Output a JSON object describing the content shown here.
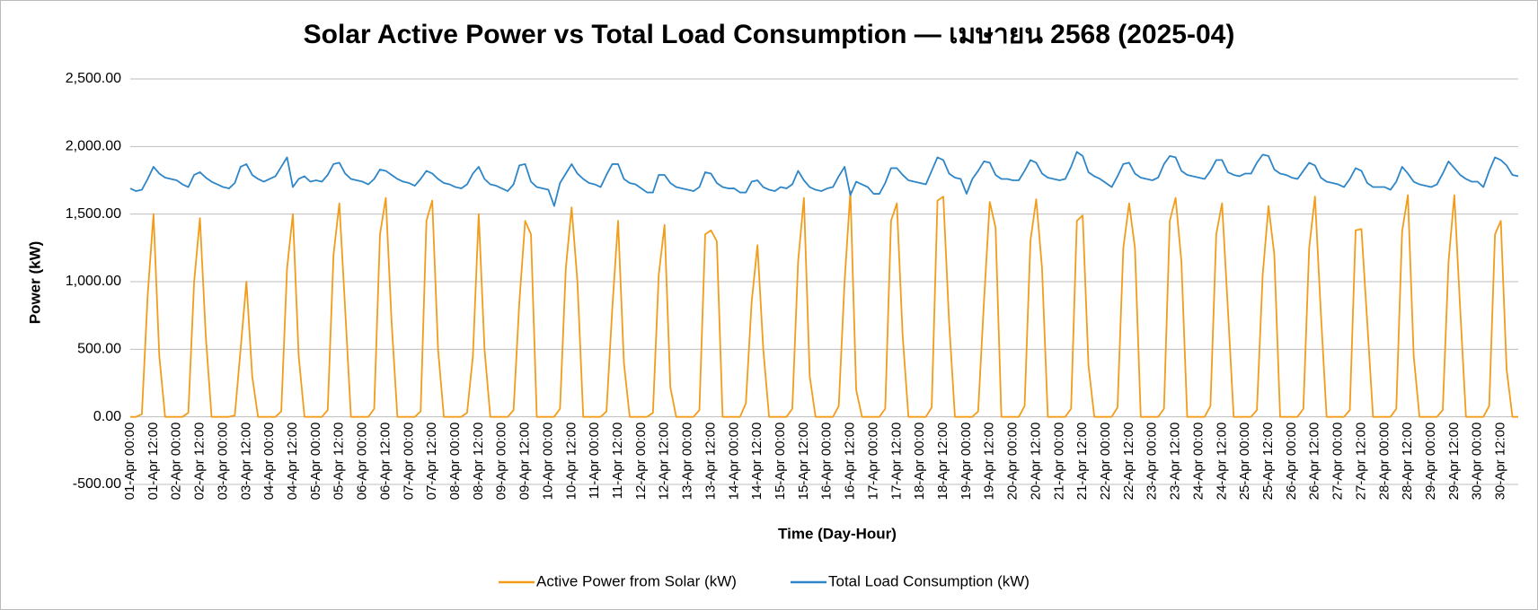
{
  "chart_data": {
    "type": "line",
    "title": "Solar Active Power vs Total Load Consumption — เมษายน 2568  (2025-04)",
    "y_label": "Power (kW)",
    "x_label": "Time (Day-Hour)",
    "categories": [
      "01-Apr 00:00",
      null,
      null,
      null,
      "01-Apr 12:00",
      null,
      null,
      null,
      "02-Apr 00:00",
      null,
      null,
      null,
      "02-Apr 12:00",
      null,
      null,
      null,
      "03-Apr 00:00",
      null,
      null,
      null,
      "03-Apr 12:00",
      null,
      null,
      null,
      "04-Apr 00:00",
      null,
      null,
      null,
      "04-Apr 12:00",
      null,
      null,
      null,
      "05-Apr 00:00",
      null,
      null,
      null,
      "05-Apr 12:00",
      null,
      null,
      null,
      "06-Apr 00:00",
      null,
      null,
      null,
      "06-Apr 12:00",
      null,
      null,
      null,
      "07-Apr 00:00",
      null,
      null,
      null,
      "07-Apr 12:00",
      null,
      null,
      null,
      "08-Apr 00:00",
      null,
      null,
      null,
      "08-Apr 12:00",
      null,
      null,
      null,
      "09-Apr 00:00",
      null,
      null,
      null,
      "09-Apr 12:00",
      null,
      null,
      null,
      "10-Apr 00:00",
      null,
      null,
      null,
      "10-Apr 12:00",
      null,
      null,
      null,
      "11-Apr 00:00",
      null,
      null,
      null,
      "11-Apr 12:00",
      null,
      null,
      null,
      "12-Apr 00:00",
      null,
      null,
      null,
      "12-Apr 12:00",
      null,
      null,
      null,
      "13-Apr 00:00",
      null,
      null,
      null,
      "13-Apr 12:00",
      null,
      null,
      null,
      "14-Apr 00:00",
      null,
      null,
      null,
      "14-Apr 12:00",
      null,
      null,
      null,
      "15-Apr 00:00",
      null,
      null,
      null,
      "15-Apr 12:00",
      null,
      null,
      null,
      "16-Apr 00:00",
      null,
      null,
      null,
      "16-Apr 12:00",
      null,
      null,
      null,
      "17-Apr 00:00",
      null,
      null,
      null,
      "17-Apr 12:00",
      null,
      null,
      null,
      "18-Apr 00:00",
      null,
      null,
      null,
      "18-Apr 12:00",
      null,
      null,
      null,
      "19-Apr 00:00",
      null,
      null,
      null,
      "19-Apr 12:00",
      null,
      null,
      null,
      "20-Apr 00:00",
      null,
      null,
      null,
      "20-Apr 12:00",
      null,
      null,
      null,
      "21-Apr 00:00",
      null,
      null,
      null,
      "21-Apr 12:00",
      null,
      null,
      null,
      "22-Apr 00:00",
      null,
      null,
      null,
      "22-Apr 12:00",
      null,
      null,
      null,
      "23-Apr 00:00",
      null,
      null,
      null,
      "23-Apr 12:00",
      null,
      null,
      null,
      "24-Apr 00:00",
      null,
      null,
      null,
      "24-Apr 12:00",
      null,
      null,
      null,
      "25-Apr 00:00",
      null,
      null,
      null,
      "25-Apr 12:00",
      null,
      null,
      null,
      "26-Apr 00:00",
      null,
      null,
      null,
      "26-Apr 12:00",
      null,
      null,
      null,
      "27-Apr 00:00",
      null,
      null,
      null,
      "27-Apr 12:00",
      null,
      null,
      null,
      "28-Apr 00:00",
      null,
      null,
      null,
      "28-Apr 12:00",
      null,
      null,
      null,
      "29-Apr 00:00",
      null,
      null,
      null,
      "29-Apr 12:00",
      null,
      null,
      null,
      "30-Apr 00:00",
      null,
      null,
      null,
      "30-Apr 12:00",
      null,
      null,
      null
    ],
    "series": [
      {
        "name": "Active Power from Solar (kW)",
        "color": "#f39c1a",
        "values": [
          0,
          0,
          20,
          900,
          1500,
          450,
          0,
          0,
          0,
          0,
          30,
          1000,
          1470,
          600,
          0,
          0,
          0,
          0,
          10,
          500,
          1000,
          300,
          0,
          0,
          0,
          0,
          40,
          1100,
          1500,
          450,
          0,
          0,
          0,
          0,
          50,
          1200,
          1580,
          800,
          0,
          0,
          0,
          0,
          60,
          1350,
          1620,
          700,
          0,
          0,
          0,
          0,
          40,
          1450,
          1600,
          500,
          0,
          0,
          0,
          0,
          30,
          450,
          1500,
          500,
          0,
          0,
          0,
          0,
          50,
          850,
          1450,
          1350,
          0,
          0,
          0,
          0,
          60,
          1100,
          1550,
          1000,
          0,
          0,
          0,
          0,
          40,
          800,
          1450,
          400,
          0,
          0,
          0,
          0,
          30,
          1050,
          1420,
          220,
          0,
          0,
          0,
          0,
          50,
          1350,
          1380,
          1300,
          0,
          0,
          0,
          0,
          100,
          850,
          1270,
          500,
          0,
          0,
          0,
          0,
          60,
          1150,
          1620,
          300,
          0,
          0,
          0,
          0,
          80,
          1000,
          1670,
          200,
          0,
          0,
          0,
          0,
          60,
          1450,
          1580,
          600,
          0,
          0,
          0,
          0,
          70,
          1600,
          1630,
          700,
          0,
          0,
          0,
          0,
          40,
          850,
          1590,
          1400,
          0,
          0,
          0,
          0,
          80,
          1300,
          1610,
          1100,
          0,
          0,
          0,
          0,
          60,
          1450,
          1490,
          380,
          0,
          0,
          0,
          0,
          70,
          1250,
          1580,
          1250,
          0,
          0,
          0,
          0,
          60,
          1450,
          1620,
          1150,
          0,
          0,
          0,
          0,
          80,
          1350,
          1580,
          800,
          0,
          0,
          0,
          0,
          50,
          1050,
          1560,
          1200,
          0,
          0,
          0,
          0,
          60,
          1250,
          1630,
          780,
          0,
          0,
          0,
          0,
          50,
          1380,
          1390,
          700,
          0,
          0,
          0,
          0,
          60,
          1370,
          1640,
          450,
          0,
          0,
          0,
          0,
          50,
          1150,
          1640,
          800,
          0,
          0,
          0,
          0,
          80,
          1350,
          1450,
          350,
          0,
          0
        ]
      },
      {
        "name": "Total Load Consumption (kW)",
        "color": "#2e86c8",
        "values": [
          1690,
          1670,
          1680,
          1760,
          1850,
          1800,
          1770,
          1760,
          1750,
          1720,
          1700,
          1790,
          1810,
          1770,
          1740,
          1720,
          1700,
          1690,
          1730,
          1850,
          1870,
          1790,
          1760,
          1740,
          1760,
          1780,
          1850,
          1920,
          1700,
          1760,
          1780,
          1740,
          1750,
          1740,
          1790,
          1870,
          1880,
          1800,
          1760,
          1750,
          1740,
          1720,
          1760,
          1830,
          1820,
          1790,
          1760,
          1740,
          1730,
          1710,
          1760,
          1820,
          1800,
          1760,
          1730,
          1720,
          1700,
          1690,
          1720,
          1800,
          1850,
          1760,
          1720,
          1710,
          1690,
          1670,
          1720,
          1860,
          1870,
          1740,
          1700,
          1690,
          1680,
          1560,
          1730,
          1800,
          1870,
          1800,
          1760,
          1730,
          1720,
          1700,
          1790,
          1870,
          1870,
          1760,
          1730,
          1720,
          1690,
          1660,
          1660,
          1790,
          1790,
          1730,
          1700,
          1690,
          1680,
          1670,
          1700,
          1810,
          1800,
          1730,
          1700,
          1690,
          1690,
          1660,
          1660,
          1740,
          1750,
          1700,
          1680,
          1670,
          1700,
          1690,
          1720,
          1820,
          1750,
          1700,
          1680,
          1670,
          1690,
          1700,
          1780,
          1850,
          1640,
          1740,
          1720,
          1700,
          1650,
          1650,
          1730,
          1840,
          1840,
          1790,
          1750,
          1740,
          1730,
          1720,
          1820,
          1920,
          1900,
          1800,
          1770,
          1760,
          1650,
          1760,
          1820,
          1890,
          1880,
          1790,
          1760,
          1760,
          1750,
          1750,
          1820,
          1900,
          1880,
          1800,
          1770,
          1760,
          1750,
          1760,
          1850,
          1960,
          1930,
          1810,
          1780,
          1760,
          1730,
          1700,
          1780,
          1870,
          1880,
          1800,
          1770,
          1760,
          1750,
          1770,
          1870,
          1930,
          1920,
          1820,
          1790,
          1780,
          1770,
          1760,
          1820,
          1900,
          1900,
          1810,
          1790,
          1780,
          1800,
          1800,
          1880,
          1940,
          1930,
          1830,
          1800,
          1790,
          1770,
          1760,
          1820,
          1880,
          1860,
          1770,
          1740,
          1730,
          1720,
          1700,
          1760,
          1840,
          1820,
          1730,
          1700,
          1700,
          1700,
          1680,
          1740,
          1850,
          1800,
          1740,
          1720,
          1710,
          1700,
          1720,
          1800,
          1890,
          1840,
          1790,
          1760,
          1740,
          1740,
          1700,
          1820,
          1920,
          1900,
          1860,
          1790,
          1780
        ]
      }
    ],
    "ylim": [
      -500,
      2500
    ],
    "yticks": [
      {
        "value": -500,
        "label": "-500.00"
      },
      {
        "value": 0,
        "label": "0.00"
      },
      {
        "value": 500,
        "label": "500.00"
      },
      {
        "value": 1000,
        "label": "1,000.00"
      },
      {
        "value": 1500,
        "label": "1,500.00"
      },
      {
        "value": 2000,
        "label": "2,000.00"
      },
      {
        "value": 2500,
        "label": "2,500.00"
      }
    ],
    "grid": true,
    "legend": "bottom"
  }
}
